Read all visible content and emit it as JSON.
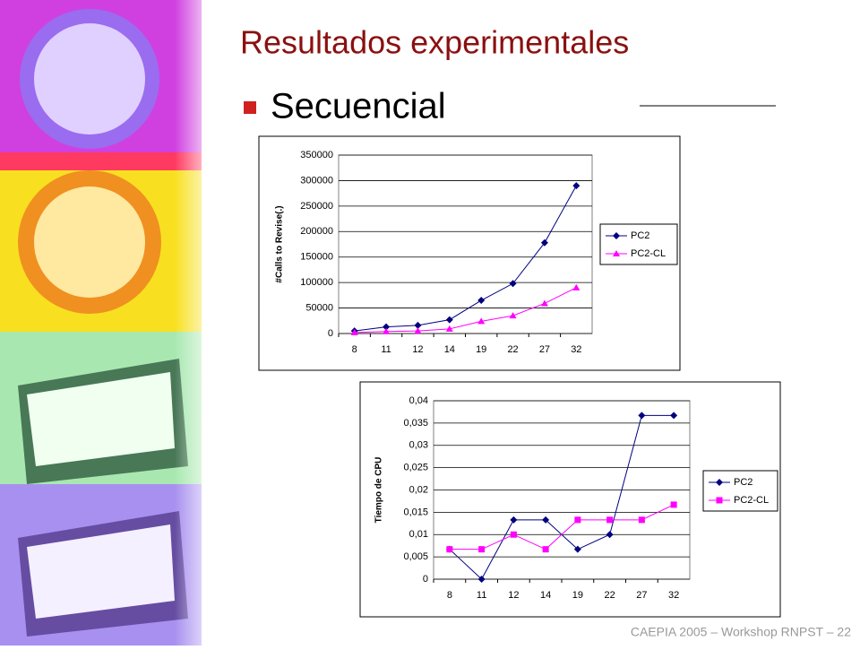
{
  "slide": {
    "title": "Resultados experimentales",
    "bullet": "Secuencial",
    "footer": "CAEPIA 2005 – Workshop RNPST – 22"
  },
  "chart_data": [
    {
      "type": "line",
      "y_label": "#Calls to Revise(.)",
      "categories": [
        "8",
        "11",
        "12",
        "14",
        "19",
        "22",
        "27",
        "32"
      ],
      "series": [
        {
          "name": "PC2",
          "color": "#000080",
          "marker": "diamond",
          "values": [
            5000,
            13000,
            16000,
            27000,
            65000,
            98000,
            178000,
            290000
          ]
        },
        {
          "name": "PC2-CL",
          "color": "#ff00ff",
          "marker": "triangle",
          "values": [
            2000,
            4000,
            5000,
            9000,
            24000,
            35000,
            59000,
            90000
          ]
        }
      ],
      "ylim": [
        0,
        350000
      ],
      "yticks": [
        0,
        50000,
        100000,
        150000,
        200000,
        250000,
        300000,
        350000
      ],
      "grid": true,
      "legend": "right"
    },
    {
      "type": "line",
      "y_label": "Tiempo de CPU",
      "categories": [
        "8",
        "11",
        "12",
        "14",
        "19",
        "22",
        "27",
        "32"
      ],
      "series": [
        {
          "name": "PC2",
          "color": "#000080",
          "marker": "diamond",
          "values": [
            0.0067,
            0,
            0.0133,
            0.0133,
            0.0067,
            0.01,
            0.0367,
            0.0367
          ]
        },
        {
          "name": "PC2-CL",
          "color": "#ff00ff",
          "marker": "square",
          "values": [
            0.0067,
            0.0067,
            0.01,
            0.0067,
            0.0133,
            0.0133,
            0.0133,
            0.0167
          ]
        }
      ],
      "ylim": [
        0,
        0.04
      ],
      "yticks": [
        0,
        {
          "value": 0.005,
          "label": "0,005"
        },
        {
          "value": 0.01,
          "label": "0,01"
        },
        {
          "value": 0.015,
          "label": "0,015"
        },
        {
          "value": 0.02,
          "label": "0,02"
        },
        {
          "value": 0.025,
          "label": "0,025"
        },
        {
          "value": 0.03,
          "label": "0,03"
        },
        {
          "value": 0.035,
          "label": "0,035"
        },
        {
          "value": 0.04,
          "label": "0,04"
        }
      ],
      "grid": true,
      "legend": "right"
    }
  ]
}
